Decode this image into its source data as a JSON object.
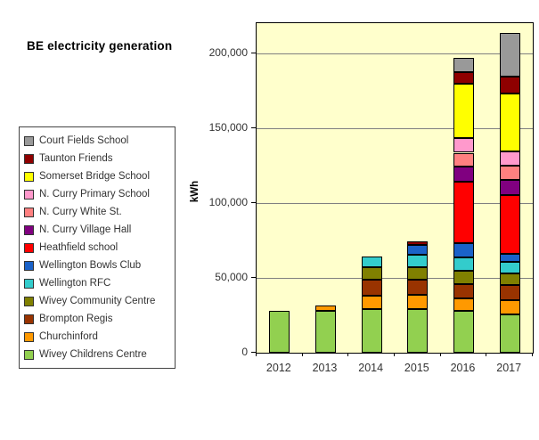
{
  "title": "BE electricity generation",
  "y_axis_label": "kWh",
  "chart_data": {
    "type": "bar",
    "stacked": true,
    "title": "BE electricity generation",
    "xlabel": "",
    "ylabel": "kWh",
    "categories": [
      "2012",
      "2013",
      "2014",
      "2015",
      "2016",
      "2017"
    ],
    "series": [
      {
        "name": "Wivey Childrens Centre",
        "color": "#92D050",
        "values": [
          28000,
          28000,
          29000,
          29000,
          28000,
          25500
        ]
      },
      {
        "name": "Churchinford",
        "color": "#FF9900",
        "values": [
          0,
          3500,
          9000,
          9500,
          8000,
          9500
        ]
      },
      {
        "name": "Brompton Regis",
        "color": "#993300",
        "values": [
          0,
          0,
          10500,
          10000,
          10000,
          10000
        ]
      },
      {
        "name": "Wivey Community Centre",
        "color": "#808000",
        "values": [
          0,
          0,
          8500,
          8500,
          8500,
          7700
        ]
      },
      {
        "name": "Wellington RFC",
        "color": "#33CCCC",
        "values": [
          0,
          0,
          7000,
          8500,
          9000,
          7700
        ]
      },
      {
        "name": "Wellington Bowls Club",
        "color": "#1A62C8",
        "values": [
          0,
          0,
          0,
          6500,
          9500,
          5400
        ]
      },
      {
        "name": "Heathfield school",
        "color": "#FF0000",
        "values": [
          0,
          0,
          0,
          0,
          41000,
          39200
        ]
      },
      {
        "name": "N. Curry Village Hall",
        "color": "#800080",
        "values": [
          0,
          0,
          0,
          0,
          10000,
          10600
        ]
      },
      {
        "name": "N. Curry White St.",
        "color": "#FF8080",
        "values": [
          0,
          0,
          0,
          0,
          9500,
          9500
        ]
      },
      {
        "name": "N. Curry Primary School",
        "color": "#FF99CC",
        "values": [
          0,
          0,
          0,
          0,
          10000,
          9500
        ]
      },
      {
        "name": "Somerset Bridge School",
        "color": "#FFFF00",
        "values": [
          0,
          0,
          0,
          0,
          36000,
          38500
        ]
      },
      {
        "name": "Taunton Friends",
        "color": "#8F0000",
        "values": [
          0,
          0,
          0,
          2500,
          7700,
          11200
        ]
      },
      {
        "name": "Court Fields School",
        "color": "#999999",
        "values": [
          0,
          0,
          0,
          0,
          9500,
          29000
        ]
      }
    ],
    "ylim": [
      0,
      220000
    ],
    "yticks": [
      {
        "value": 0,
        "label": "0"
      },
      {
        "value": 50000,
        "label": "50,000"
      },
      {
        "value": 100000,
        "label": "100,000"
      },
      {
        "value": 150000,
        "label": "150,000"
      },
      {
        "value": 200000,
        "label": "200,000"
      }
    ],
    "grid": true,
    "plot_background": "#FFFFCC",
    "legend_position": "left",
    "legend_order": "reverse-of-stack"
  }
}
